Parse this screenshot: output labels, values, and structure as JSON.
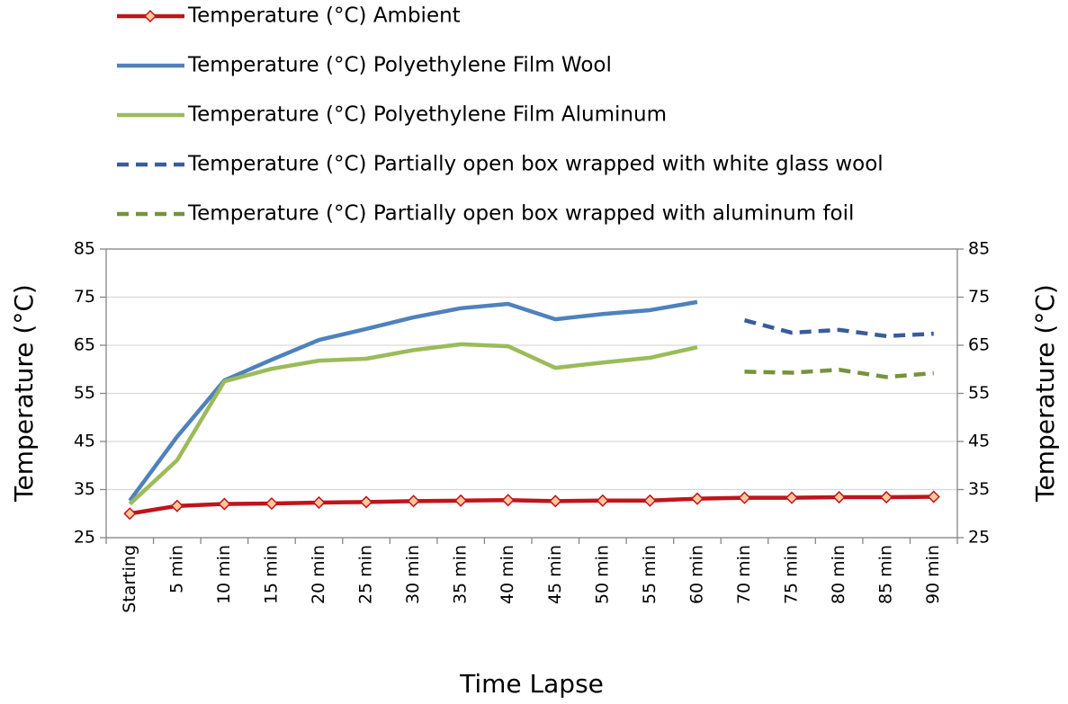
{
  "chart_data": {
    "type": "line",
    "x_label": "Time Lapse",
    "y_label": "Temperature (°C)",
    "y2_label": "Temperature (°C)",
    "categories": [
      "Starting",
      "5 min",
      "10 min",
      "15 min",
      "20 min",
      "25 min",
      "30 min",
      "35 min",
      "40 min",
      "45 min",
      "50 min",
      "55 min",
      "60 min",
      "70 min",
      "75 min",
      "80 min",
      "85 min",
      "90 min"
    ],
    "series": [
      {
        "name": "Temperature (°C) Ambient",
        "color": "#c0141c",
        "style": "solid",
        "marker": "diamond",
        "values": [
          30,
          31.6,
          32,
          32.1,
          32.3,
          32.4,
          32.6,
          32.7,
          32.8,
          32.6,
          32.7,
          32.7,
          33.1,
          33.3,
          33.3,
          33.4,
          33.4,
          33.5
        ]
      },
      {
        "name": "Temperature (°C) Polyethylene Film Wool",
        "color": "#4f81bd",
        "style": "solid",
        "values": [
          32.7,
          46,
          57.7,
          62,
          66.1,
          68.4,
          70.8,
          72.7,
          73.6,
          70.4,
          71.5,
          72.3,
          74,
          null,
          null,
          null,
          null,
          null
        ]
      },
      {
        "name": "Temperature (°C) Polyethylene Film Aluminum",
        "color": "#9bbb59",
        "style": "solid",
        "values": [
          32,
          41.1,
          57.5,
          60.1,
          61.8,
          62.2,
          64,
          65.2,
          64.8,
          60.3,
          61.4,
          62.4,
          64.6,
          null,
          null,
          null,
          null,
          null
        ]
      },
      {
        "name": "Temperature (°C) Partially open box wrapped with white glass wool",
        "color": "#385d9a",
        "style": "dashed",
        "values": [
          null,
          null,
          null,
          null,
          null,
          null,
          null,
          null,
          null,
          null,
          null,
          null,
          null,
          70.2,
          67.6,
          68.2,
          66.9,
          67.4
        ]
      },
      {
        "name": "Temperature (°C) Partially open box wrapped with aluminum foil",
        "color": "#76923c",
        "style": "dashed",
        "values": [
          null,
          null,
          null,
          null,
          null,
          null,
          null,
          null,
          null,
          null,
          null,
          null,
          null,
          59.5,
          59.3,
          59.9,
          58.4,
          59.2
        ]
      }
    ],
    "ylim": [
      25,
      85
    ],
    "yticks": [
      25,
      35,
      45,
      55,
      65,
      75,
      85
    ],
    "y2lim": [
      25,
      85
    ],
    "y2ticks": [
      25,
      35,
      45,
      55,
      65,
      75,
      85
    ],
    "grid": true,
    "legend": "top"
  }
}
